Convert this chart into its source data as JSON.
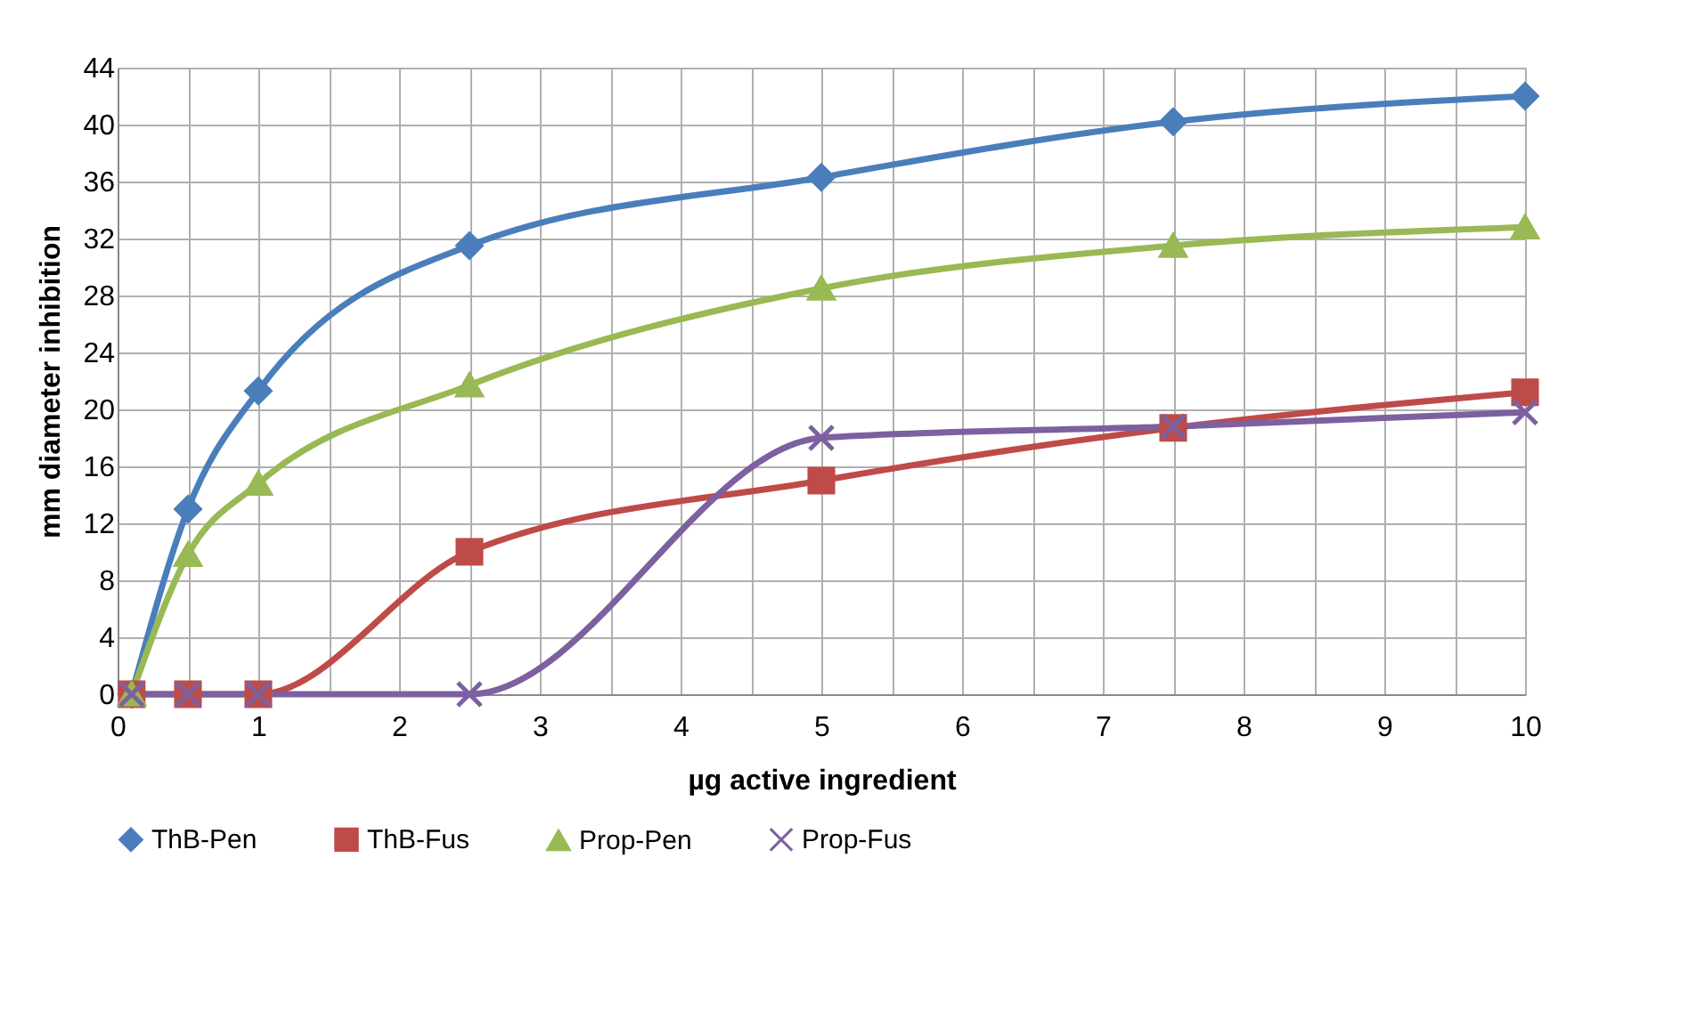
{
  "chart_data": {
    "type": "line",
    "xlabel": "µg active ingredient",
    "ylabel": "mm diameter inhibition",
    "xlim": [
      0,
      10
    ],
    "ylim": [
      0,
      44
    ],
    "xticks": [
      0,
      {
        "value": 0.5,
        "label": null
      },
      1,
      {
        "value": 1.5,
        "label": null
      },
      2,
      {
        "value": 2.5,
        "label": null
      },
      3,
      {
        "value": 3.5,
        "label": null
      },
      4,
      {
        "value": 4.5,
        "label": null
      },
      5,
      {
        "value": 5.5,
        "label": null
      },
      6,
      {
        "value": 6.5,
        "label": null
      },
      7,
      {
        "value": 7.5,
        "label": null
      },
      8,
      {
        "value": 8.5,
        "label": null
      },
      9,
      {
        "value": 9.5,
        "label": null
      },
      10
    ],
    "yticks": [
      0,
      4,
      8,
      12,
      16,
      20,
      24,
      28,
      32,
      36,
      40,
      44
    ],
    "grid": true,
    "legend": "bottom",
    "x": [
      0.1,
      0.5,
      1,
      2.5,
      5,
      7.5,
      10
    ],
    "series": [
      {
        "name": "ThB-Pen",
        "color": "#4a7ebb",
        "marker": "diamond",
        "values": [
          0,
          13,
          21.3,
          31.5,
          36.3,
          40.2,
          42
        ]
      },
      {
        "name": "ThB-Fus",
        "color": "#be4b48",
        "marker": "square",
        "values": [
          0,
          0,
          0,
          10,
          15,
          18.7,
          21.2
        ]
      },
      {
        "name": "Prop-Pen",
        "color": "#98b954",
        "marker": "triangle",
        "values": [
          0,
          9.8,
          14.8,
          21.7,
          28.5,
          31.5,
          32.8
        ]
      },
      {
        "name": "Prop-Fus",
        "color": "#7d60a0",
        "marker": "cross",
        "values": [
          0,
          0,
          0,
          0,
          18,
          18.8,
          19.8
        ]
      }
    ]
  }
}
